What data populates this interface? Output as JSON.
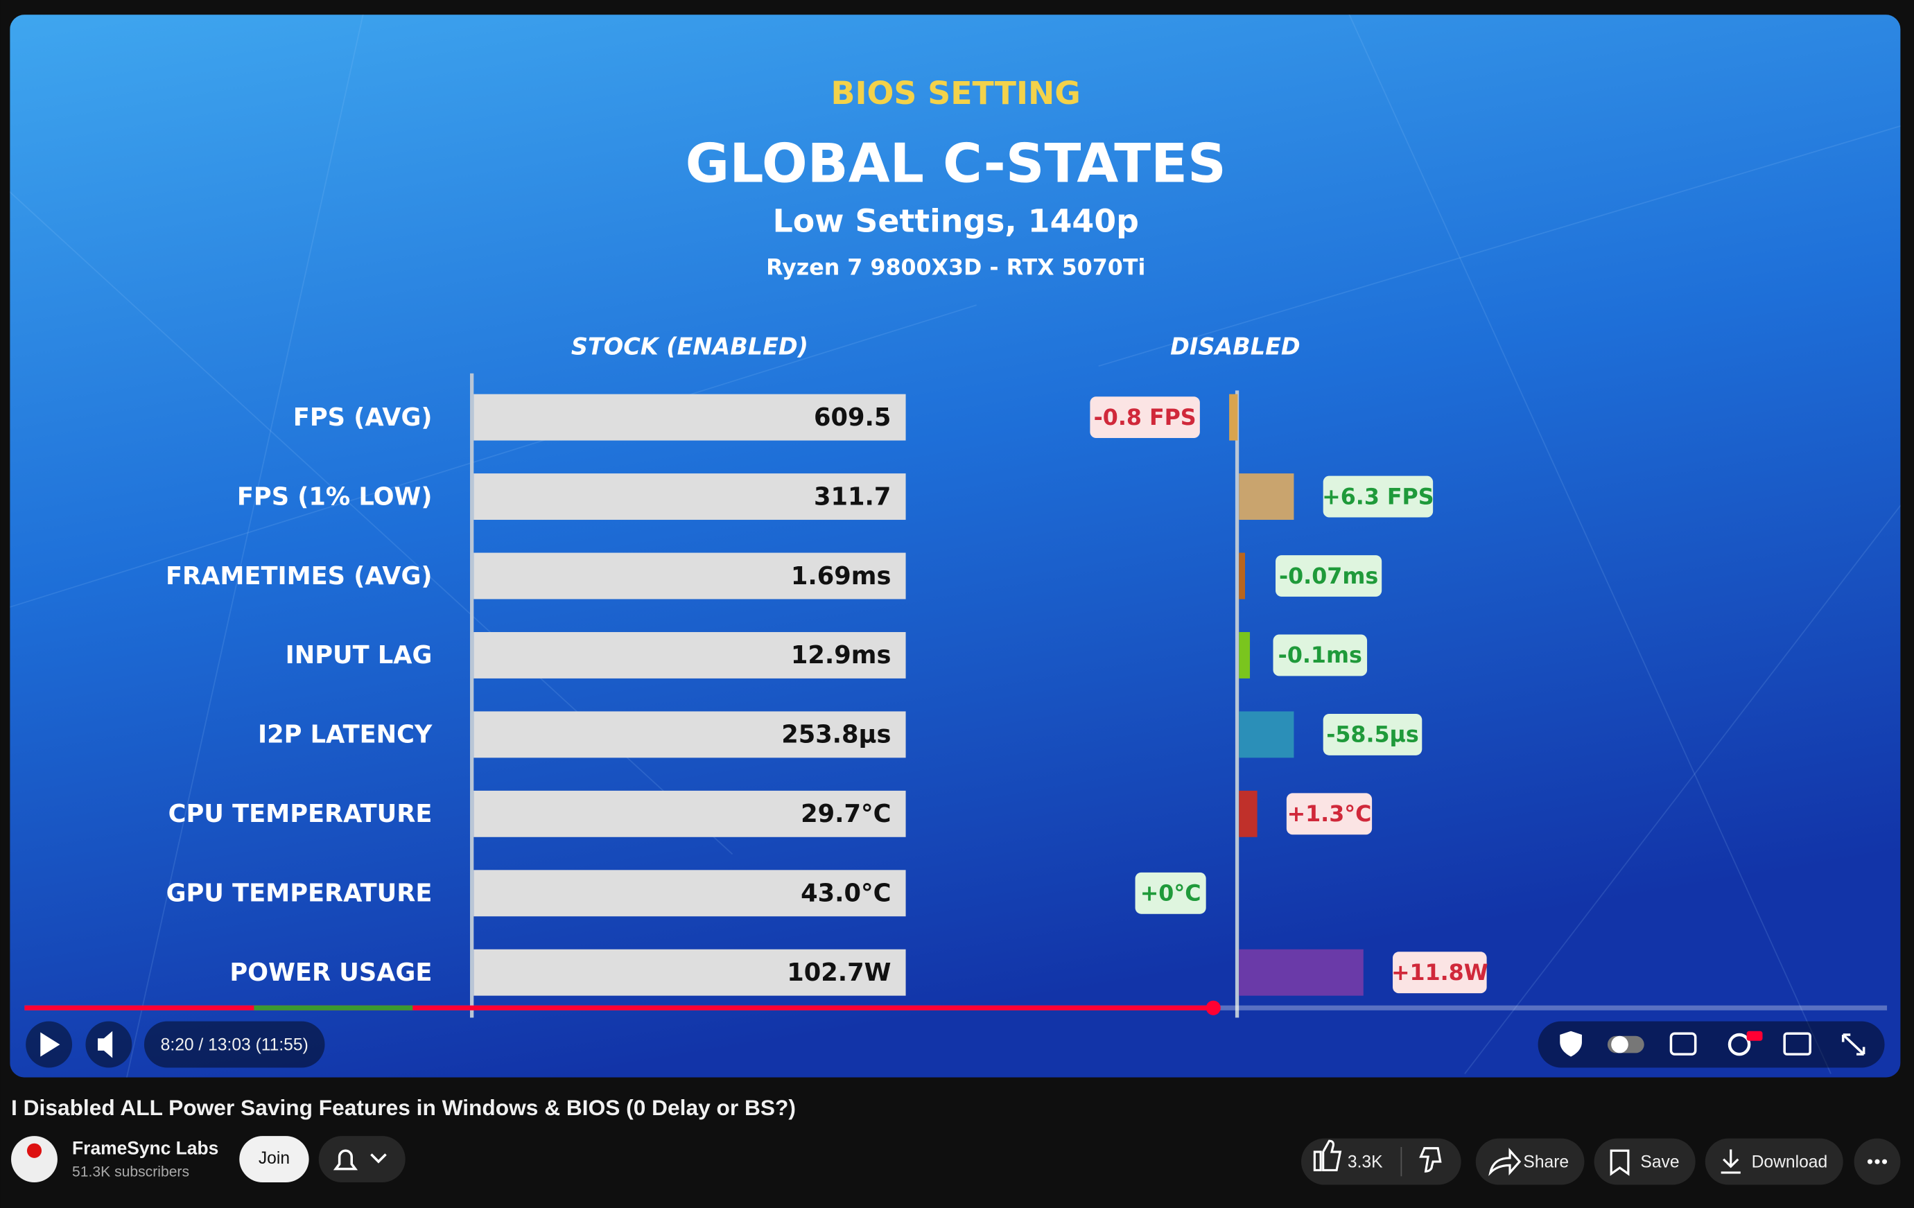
{
  "video": {
    "overline": "BIOS SETTING",
    "title": "GLOBAL C-STATES",
    "subtitle": "Low Settings, 1440p",
    "hardware": "Ryzen 7 9800X3D - RTX 5070Ti",
    "column_headers": [
      "STOCK  (ENABLED)",
      "DISABLED"
    ],
    "rows": [
      {
        "label": "FPS (AVG)",
        "stock": "609.5",
        "change": "-0.8 FPS"
      },
      {
        "label": "FPS (1% LOW)",
        "stock": "311.7",
        "change": "+6.3 FPS"
      },
      {
        "label": "FRAMETIMES (AVG)",
        "stock": "1.69ms",
        "change": "-0.07ms"
      },
      {
        "label": "INPUT LAG",
        "stock": "12.9ms",
        "change": "-0.1ms"
      },
      {
        "label": "I2P LATENCY",
        "stock": "253.8µs",
        "change": "-58.5µs"
      },
      {
        "label": "CPU TEMPERATURE",
        "stock": "29.7°C",
        "change": "+1.3°C"
      },
      {
        "label": "GPU TEMPERATURE",
        "stock": "43.0°C",
        "change": "+0°C"
      },
      {
        "label": "POWER USAGE",
        "stock": "102.7W",
        "change": "+11.8W"
      }
    ],
    "time": "8:20 / 13:03 (11:55)"
  },
  "page": {
    "title": "I Disabled ALL Power Saving Features in Windows & BIOS (0 Delay or BS?)",
    "channel": "FrameSync Labs",
    "subscribers": "51.3K subscribers",
    "join": "Join",
    "likes": "3.3K",
    "share": "Share",
    "save": "Save",
    "download": "Download"
  }
}
